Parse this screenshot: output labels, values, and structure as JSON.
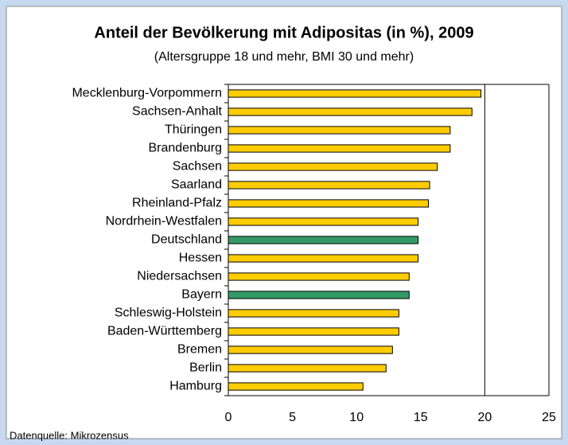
{
  "chart_data": {
    "type": "bar",
    "orientation": "horizontal",
    "title": "Anteil der Bevölkerung mit Adipositas (in %), 2009",
    "subtitle": "(Altersgruppe 18 und mehr, BMI 30 und mehr)",
    "source": "Datenquelle: Mikrozensus",
    "categories": [
      "Mecklenburg-Vorpommern",
      "Sachsen-Anhalt",
      "Thüringen",
      "Brandenburg",
      "Sachsen",
      "Saarland",
      "Rheinland-Pfalz",
      "Nordrhein-Westfalen",
      "Deutschland",
      "Hessen",
      "Niedersachsen",
      "Bayern",
      "Schleswig-Holstein",
      "Baden-Württemberg",
      "Bremen",
      "Berlin",
      "Hamburg"
    ],
    "values": [
      19.7,
      19.0,
      17.3,
      17.3,
      16.3,
      15.7,
      15.6,
      14.8,
      14.8,
      14.8,
      14.1,
      14.1,
      13.3,
      13.3,
      12.8,
      12.3,
      10.5
    ],
    "colors": [
      "#ffcc00",
      "#ffcc00",
      "#ffcc00",
      "#ffcc00",
      "#ffcc00",
      "#ffcc00",
      "#ffcc00",
      "#ffcc00",
      "#339966",
      "#ffcc00",
      "#ffcc00",
      "#339966",
      "#ffcc00",
      "#ffcc00",
      "#ffcc00",
      "#ffcc00",
      "#ffcc00"
    ],
    "xlim": [
      0,
      25
    ],
    "xticks": [
      0,
      5,
      10,
      15,
      20,
      25
    ],
    "gridlines": [
      20
    ]
  }
}
